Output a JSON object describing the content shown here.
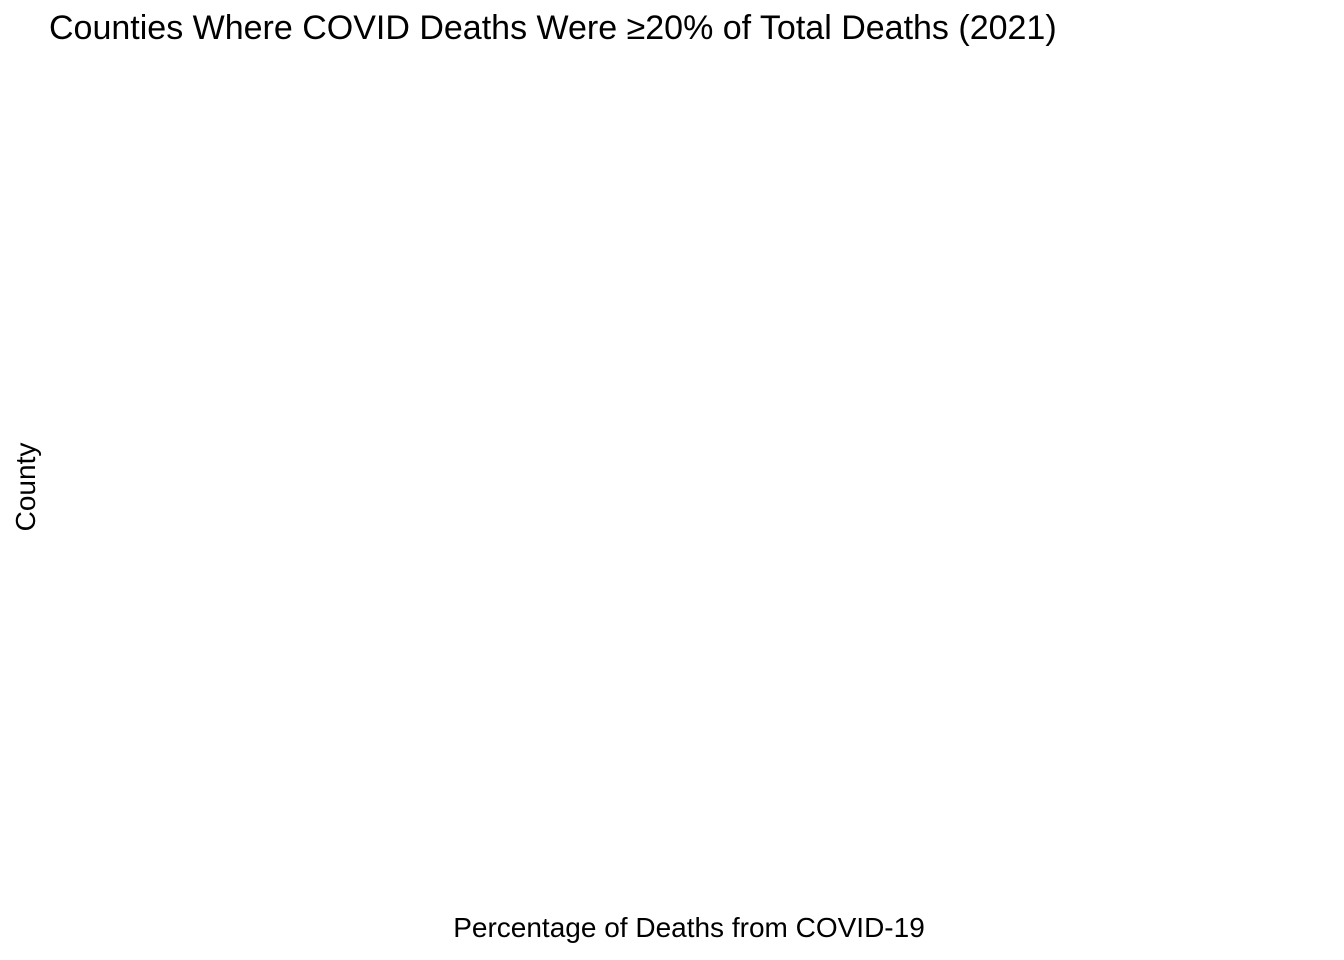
{
  "chart_data": {
    "type": "bar",
    "orientation": "horizontal",
    "title": "Counties Where COVID Deaths Were ≥20% of Total Deaths (2021)",
    "xlabel": "Percentage of Deaths from COVID-19",
    "ylabel": "County",
    "categories": [],
    "values": [],
    "grid": false
  }
}
